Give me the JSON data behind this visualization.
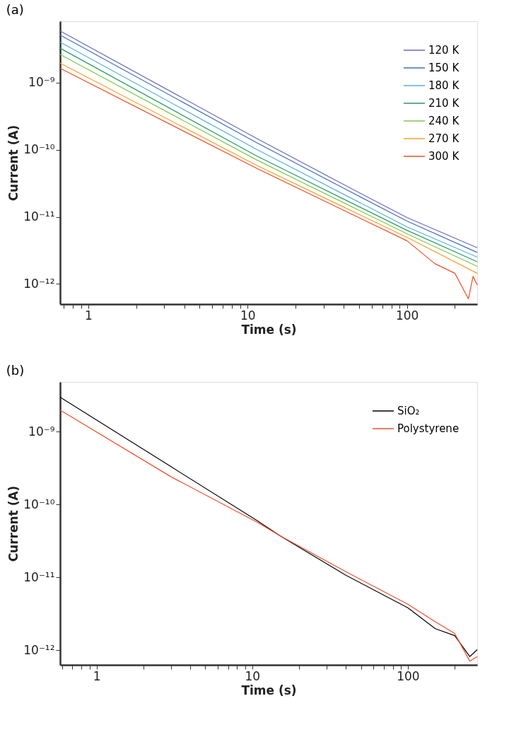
{
  "chart_data": [
    {
      "type": "line",
      "title": "(a)",
      "xlabel": "Time (s)",
      "ylabel": "Current (A)",
      "log": "xy",
      "grid": false,
      "legend": "top right",
      "line_style": "solid",
      "marker": "none",
      "xlim": [
        0.665,
        276
      ],
      "ylim": [
        5e-13,
        8.2e-09
      ],
      "xticks": [
        {
          "value": 0.7,
          "label": null
        },
        {
          "value": 0.8,
          "label": null
        },
        {
          "value": 0.9,
          "label": null
        },
        1,
        {
          "value": 2,
          "label": null
        },
        {
          "value": 3,
          "label": null
        },
        {
          "value": 4,
          "label": null
        },
        {
          "value": 5,
          "label": null
        },
        {
          "value": 6,
          "label": null
        },
        {
          "value": 7,
          "label": null
        },
        {
          "value": 8,
          "label": null
        },
        {
          "value": 9,
          "label": null
        },
        10,
        {
          "value": 20,
          "label": null
        },
        {
          "value": 30,
          "label": null
        },
        {
          "value": 40,
          "label": null
        },
        {
          "value": 50,
          "label": null
        },
        {
          "value": 60,
          "label": null
        },
        {
          "value": 70,
          "label": null
        },
        {
          "value": 80,
          "label": null
        },
        {
          "value": 90,
          "label": null
        },
        100,
        {
          "value": 200,
          "label": null
        }
      ],
      "yticks": [
        {
          "value": 1e-09,
          "label": "10⁻⁹"
        },
        {
          "value": 1e-10,
          "label": "10⁻¹⁰"
        },
        {
          "value": 1e-11,
          "label": "10⁻¹¹"
        },
        {
          "value": 1e-12,
          "label": "10⁻¹²"
        }
      ],
      "x": [
        0.665,
        11.4,
        40,
        100,
        276
      ],
      "series": [
        {
          "name": "120 K",
          "color": "#6a6ab4",
          "values": [
            5.86e-09,
            1.47e-10,
            3.03e-11,
            9.75e-12,
            3.46e-12
          ]
        },
        {
          "name": "150 K",
          "color": "#3f6fc0",
          "values": [
            5.12e-09,
            1.27e-10,
            2.67e-11,
            8.65e-12,
            2.95e-12
          ]
        },
        {
          "name": "180 K",
          "color": "#5aaee0",
          "values": [
            4e-09,
            1.01e-10,
            2.17e-11,
            7.08e-12,
            2.51e-12
          ]
        },
        {
          "name": "210 K",
          "color": "#2a9a6a",
          "values": [
            3.25e-09,
            8.07e-11,
            1.84e-11,
            6.29e-12,
            2.14e-12
          ]
        },
        {
          "name": "240 K",
          "color": "#7cc94a",
          "values": [
            2.62e-09,
            7.03e-11,
            1.62e-11,
            5.58e-12,
            1.83e-12
          ]
        },
        {
          "name": "270 K",
          "color": "#f5a02a",
          "values": [
            1.95e-09,
            5.85e-11,
            1.4e-11,
            4.96e-12,
            1.44e-12
          ]
        },
        {
          "name": "300 K",
          "color": "#f04e2a",
          "x": [
            0.665,
            11.4,
            40,
            100,
            150,
            200,
            243,
            260,
            276
          ],
          "values": [
            1.63e-09,
            5.28e-11,
            1.25e-11,
            4.4e-12,
            2e-12,
            1.44e-12,
            6e-13,
            1.3e-12,
            9.7e-13
          ]
        }
      ]
    },
    {
      "type": "line",
      "title": "(b)",
      "xlabel": "Time (s)",
      "ylabel": "Current (A)",
      "log": "xy",
      "grid": false,
      "legend": "top right",
      "line_style": "solid",
      "marker": "none",
      "xlim": [
        0.583,
        279
      ],
      "ylim": [
        6.3e-13,
        4.83e-09
      ],
      "xticks": [
        {
          "value": 0.6,
          "label": null
        },
        {
          "value": 0.7,
          "label": null
        },
        {
          "value": 0.8,
          "label": null
        },
        {
          "value": 0.9,
          "label": null
        },
        1,
        {
          "value": 2,
          "label": null
        },
        {
          "value": 3,
          "label": null
        },
        {
          "value": 4,
          "label": null
        },
        {
          "value": 5,
          "label": null
        },
        {
          "value": 6,
          "label": null
        },
        {
          "value": 7,
          "label": null
        },
        {
          "value": 8,
          "label": null
        },
        {
          "value": 9,
          "label": null
        },
        10,
        {
          "value": 20,
          "label": null
        },
        {
          "value": 30,
          "label": null
        },
        {
          "value": 40,
          "label": null
        },
        {
          "value": 50,
          "label": null
        },
        {
          "value": 60,
          "label": null
        },
        {
          "value": 70,
          "label": null
        },
        {
          "value": 80,
          "label": null
        },
        {
          "value": 90,
          "label": null
        },
        100,
        {
          "value": 200,
          "label": null
        }
      ],
      "yticks": [
        {
          "value": 1e-09,
          "label": "10⁻⁹"
        },
        {
          "value": 1e-10,
          "label": "10⁻¹⁰"
        },
        {
          "value": 1e-11,
          "label": "10⁻¹¹"
        },
        {
          "value": 1e-12,
          "label": "10⁻¹²"
        }
      ],
      "x": [
        0.583,
        3.0,
        10.8,
        15.1,
        40,
        100,
        150,
        200,
        250,
        279
      ],
      "series": [
        {
          "name": "SiO₂",
          "color": "#000000",
          "values": [
            2.98e-09,
            3.33e-10,
            6e-11,
            3.73e-11,
            1.07e-11,
            3.84e-12,
            1.98e-12,
            1.59e-12,
            8.2e-13,
            1.02e-12
          ]
        },
        {
          "name": "Polystyrene",
          "color": "#f04e2a",
          "values": [
            1.99e-09,
            2.42e-10,
            5.7e-11,
            3.73e-11,
            1.2e-11,
            4.28e-12,
            2.47e-12,
            1.7e-12,
            7.1e-13,
            8.2e-13
          ]
        }
      ]
    }
  ]
}
